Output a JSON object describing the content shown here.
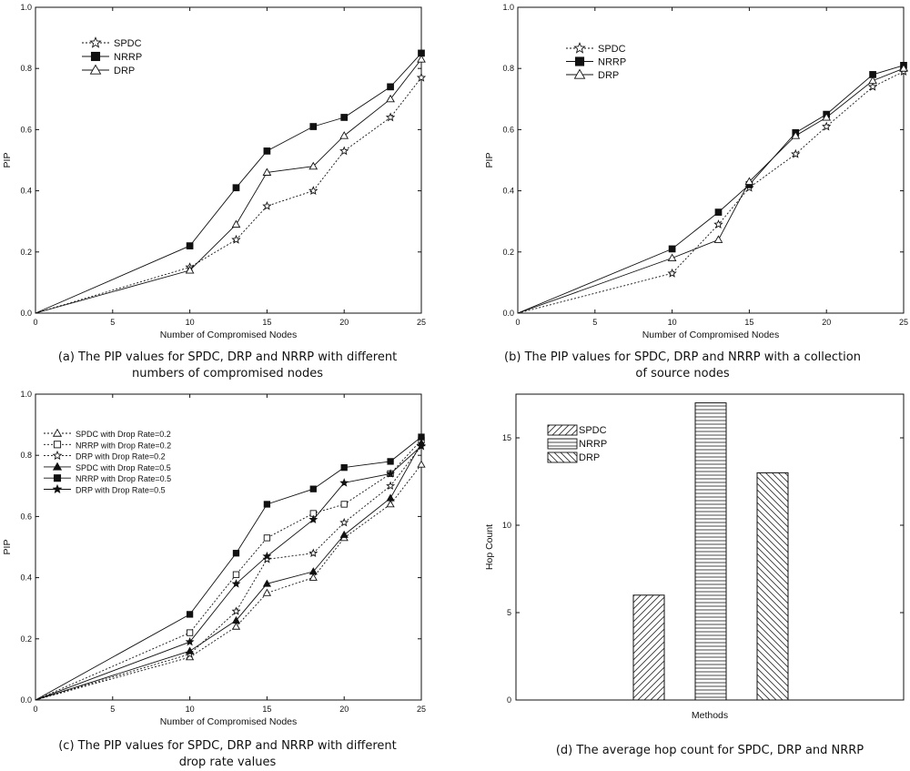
{
  "chart_data": [
    {
      "id": "a",
      "type": "line",
      "xlabel": "Number of Compromised Nodes",
      "ylabel": "PIP",
      "xlim": [
        0,
        25
      ],
      "ylim": [
        0,
        1.0
      ],
      "xticks": [
        "0",
        "5",
        "10",
        "15",
        "20",
        "25"
      ],
      "yticks": [
        "0.0",
        "0.2",
        "0.4",
        "0.6",
        "0.8",
        "1.0"
      ],
      "x": [
        0,
        10,
        13,
        15,
        18,
        20,
        23,
        25
      ],
      "legend": "top-left",
      "series": [
        {
          "name": "SPDC",
          "marker": "star-open",
          "dash": true,
          "values": [
            0,
            0.15,
            0.24,
            0.35,
            0.4,
            0.53,
            0.64,
            0.77
          ]
        },
        {
          "name": "NRRP",
          "marker": "square-filled",
          "dash": false,
          "values": [
            0,
            0.22,
            0.41,
            0.53,
            0.61,
            0.64,
            0.74,
            0.85
          ]
        },
        {
          "name": "DRP",
          "marker": "triangle-open",
          "dash": false,
          "values": [
            0,
            0.14,
            0.29,
            0.46,
            0.48,
            0.58,
            0.7,
            0.83
          ]
        }
      ],
      "caption": [
        "(a) The PIP values for SPDC, DRP and NRRP with different",
        "numbers of compromised nodes"
      ]
    },
    {
      "id": "b",
      "type": "line",
      "xlabel": "Number of Compromised Nodes",
      "ylabel": "PIP",
      "xlim": [
        0,
        25
      ],
      "ylim": [
        0,
        1.0
      ],
      "xticks": [
        "0",
        "5",
        "10",
        "15",
        "20",
        "25"
      ],
      "yticks": [
        "0.0",
        "0.2",
        "0.4",
        "0.6",
        "0.8",
        "1.0"
      ],
      "x": [
        0,
        10,
        13,
        15,
        18,
        20,
        23,
        25
      ],
      "legend": "top-left",
      "series": [
        {
          "name": "SPDC",
          "marker": "star-open",
          "dash": true,
          "values": [
            0,
            0.13,
            0.29,
            0.41,
            0.52,
            0.61,
            0.74,
            0.79
          ]
        },
        {
          "name": "NRRP",
          "marker": "square-filled",
          "dash": false,
          "values": [
            0,
            0.21,
            0.33,
            0.42,
            0.59,
            0.65,
            0.78,
            0.81
          ]
        },
        {
          "name": "DRP",
          "marker": "triangle-open",
          "dash": false,
          "values": [
            0,
            0.18,
            0.24,
            0.43,
            0.58,
            0.64,
            0.76,
            0.8
          ]
        }
      ],
      "caption": [
        "(b) The PIP values for SPDC, DRP and NRRP with a collection",
        "of source nodes"
      ]
    },
    {
      "id": "c",
      "type": "line",
      "xlabel": "Number of Compromised Nodes",
      "ylabel": "PIP",
      "xlim": [
        0,
        25
      ],
      "ylim": [
        0,
        1.0
      ],
      "xticks": [
        "0",
        "5",
        "10",
        "15",
        "20",
        "25"
      ],
      "yticks": [
        "0.0",
        "0.2",
        "0.4",
        "0.6",
        "0.8",
        "1.0"
      ],
      "x": [
        0,
        10,
        13,
        15,
        18,
        20,
        23,
        25
      ],
      "legend": "top-left",
      "series": [
        {
          "name": "SPDC with Drop Rate=0.2",
          "marker": "triangle-open",
          "dash": true,
          "values": [
            0,
            0.14,
            0.24,
            0.35,
            0.4,
            0.53,
            0.64,
            0.77
          ]
        },
        {
          "name": "NRRP with Drop Rate=0.2",
          "marker": "square-open",
          "dash": true,
          "values": [
            0,
            0.22,
            0.41,
            0.53,
            0.61,
            0.64,
            0.74,
            0.85
          ]
        },
        {
          "name": "DRP  with Drop Rate=0.2",
          "marker": "star-open",
          "dash": true,
          "values": [
            0,
            0.15,
            0.29,
            0.46,
            0.48,
            0.58,
            0.7,
            0.83
          ]
        },
        {
          "name": "SPDC with Drop Rate=0.5",
          "marker": "triangle-filled",
          "dash": false,
          "values": [
            0,
            0.16,
            0.26,
            0.38,
            0.42,
            0.54,
            0.66,
            0.84
          ]
        },
        {
          "name": "NRRP with Drop Rate=0.5",
          "marker": "square-filled",
          "dash": false,
          "values": [
            0,
            0.28,
            0.48,
            0.64,
            0.69,
            0.76,
            0.78,
            0.86
          ]
        },
        {
          "name": "DRP  with Drop Rate=0.5",
          "marker": "star-filled",
          "dash": false,
          "values": [
            0,
            0.19,
            0.38,
            0.47,
            0.59,
            0.71,
            0.74,
            0.83
          ]
        }
      ],
      "caption": [
        "(c) The PIP values for SPDC, DRP and NRRP with different",
        "drop rate values"
      ]
    },
    {
      "id": "d",
      "type": "bar",
      "xlabel": "Methods",
      "ylabel": "Hop Count",
      "ylim": [
        0,
        17.5
      ],
      "yticks": [
        "0",
        "5",
        "10",
        "15"
      ],
      "categories": [
        "SPDC",
        "NRRP",
        "DRP"
      ],
      "patterns": [
        "diag-up",
        "horizontal",
        "diag-down"
      ],
      "values": [
        6,
        17,
        13
      ],
      "legend": "top-left",
      "caption": [
        "(d) The average hop count for SPDC, DRP and NRRP"
      ]
    }
  ]
}
